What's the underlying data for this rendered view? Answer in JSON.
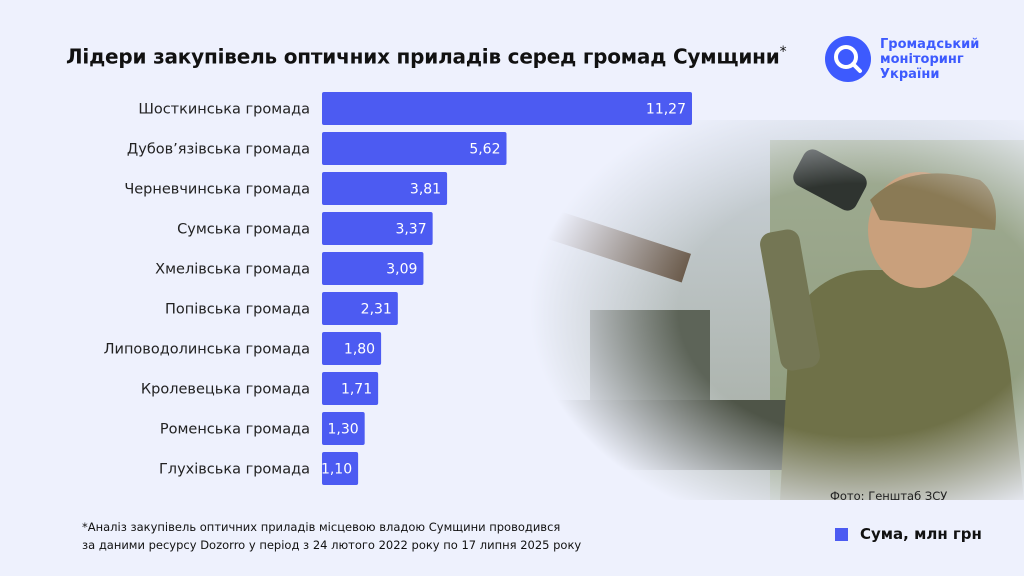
{
  "title": "Лідери закупівель оптичних приладів серед громад Сумщини",
  "title_mark": "*",
  "logo": {
    "line1": "Громадський",
    "line2": "моніторинг",
    "line3": "України"
  },
  "photo_credit": "Фото: Генштаб ЗСУ",
  "footnote": {
    "line1": "*Аналіз закупівель оптичних приладів місцевою владою Сумщини проводився",
    "line2": "за даними ресурсу Dozorro у період з 24 лютого 2022 року по 17 липня 2025 року"
  },
  "legend": {
    "label": "Сума, млн грн",
    "color": "#4c5bf2"
  },
  "chart_data": {
    "type": "bar",
    "orientation": "horizontal",
    "categories": [
      "Шосткинська громада",
      "Дубов’язівська громада",
      "Черневчинська громада",
      "Сумська громада",
      "Хмелівська громада",
      "Попівська громада",
      "Липоводолинська громада",
      "Кролевецька громада",
      "Роменська громада",
      "Глухівська громада"
    ],
    "values": [
      11.27,
      5.62,
      3.81,
      3.37,
      3.09,
      2.31,
      1.8,
      1.71,
      1.3,
      1.1
    ],
    "value_labels": [
      "11,27",
      "5,62",
      "3,81",
      "3,37",
      "3,09",
      "2,31",
      "1,80",
      "1,71",
      "1,30",
      "1,10"
    ],
    "series": [
      {
        "name": "Сума, млн грн"
      }
    ],
    "xlim": [
      0,
      11.27
    ],
    "grid": false,
    "legend_position": "bottom-right"
  }
}
